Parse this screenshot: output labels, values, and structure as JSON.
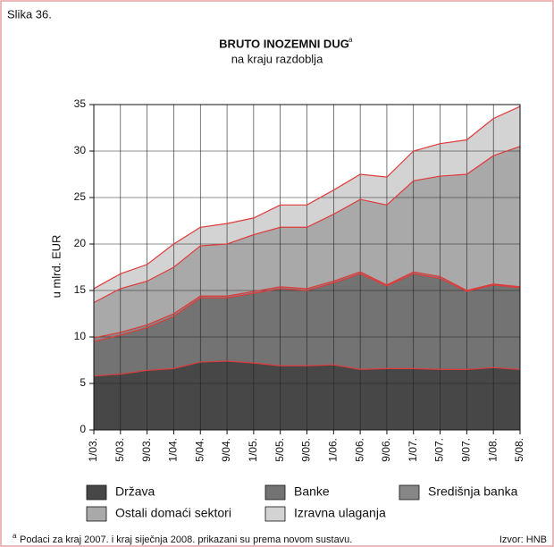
{
  "figure_label": "Slika 36.",
  "chart_data": {
    "type": "stacked_area",
    "title": "BRUTO INOZEMNI DUG",
    "title_marker": "a",
    "subtitle": "na kraju razdoblja",
    "y_label": "u mlrd. EUR",
    "categories": [
      "1/03.",
      "5/03.",
      "9/03.",
      "1/04.",
      "5/04.",
      "9/04.",
      "1/05.",
      "5/05.",
      "9/05.",
      "1/06.",
      "5/06.",
      "9/06.",
      "1/07.",
      "5/07.",
      "9/07.",
      "1/08.",
      "5/08."
    ],
    "ylim": [
      0,
      35
    ],
    "yticks": [
      0,
      5,
      10,
      15,
      20,
      25,
      30,
      35
    ],
    "grid": true,
    "line_color": "#e03a3a",
    "series": [
      {
        "name": "Država",
        "color": "#474747",
        "values": [
          5.8,
          6.0,
          6.4,
          6.6,
          7.3,
          7.4,
          7.2,
          6.9,
          6.9,
          7.0,
          6.5,
          6.6,
          6.6,
          6.5,
          6.5,
          6.7,
          6.5
        ]
      },
      {
        "name": "Banke",
        "color": "#737373",
        "values": [
          3.7,
          4.2,
          4.6,
          5.6,
          6.9,
          6.8,
          7.5,
          8.3,
          8.1,
          8.8,
          10.3,
          8.9,
          10.2,
          9.8,
          8.4,
          8.9,
          8.8
        ]
      },
      {
        "name": "Središnja banka",
        "color": "#878787",
        "values": [
          0.4,
          0.3,
          0.3,
          0.3,
          0.2,
          0.2,
          0.2,
          0.2,
          0.2,
          0.2,
          0.2,
          0.1,
          0.2,
          0.2,
          0.1,
          0.1,
          0.1
        ]
      },
      {
        "name": "Ostali domaći sektori",
        "color": "#a9a9a9",
        "values": [
          3.8,
          4.7,
          4.7,
          5.0,
          5.4,
          5.6,
          6.1,
          6.4,
          6.6,
          7.2,
          7.8,
          8.6,
          9.8,
          10.8,
          12.5,
          13.8,
          15.1
        ]
      },
      {
        "name": "Izravna ulaganja",
        "color": "#d3d3d3",
        "values": [
          1.5,
          1.6,
          1.8,
          2.5,
          2.0,
          2.2,
          1.8,
          2.4,
          2.4,
          2.6,
          2.7,
          3.0,
          3.2,
          3.5,
          3.7,
          4.0,
          4.3
        ]
      }
    ]
  },
  "footnote": {
    "marker": "a",
    "text": "Podaci za kraj 2007. i kraj siječnja 2008. prikazani su prema novom sustavu.",
    "source": "Izvor: HNB"
  }
}
